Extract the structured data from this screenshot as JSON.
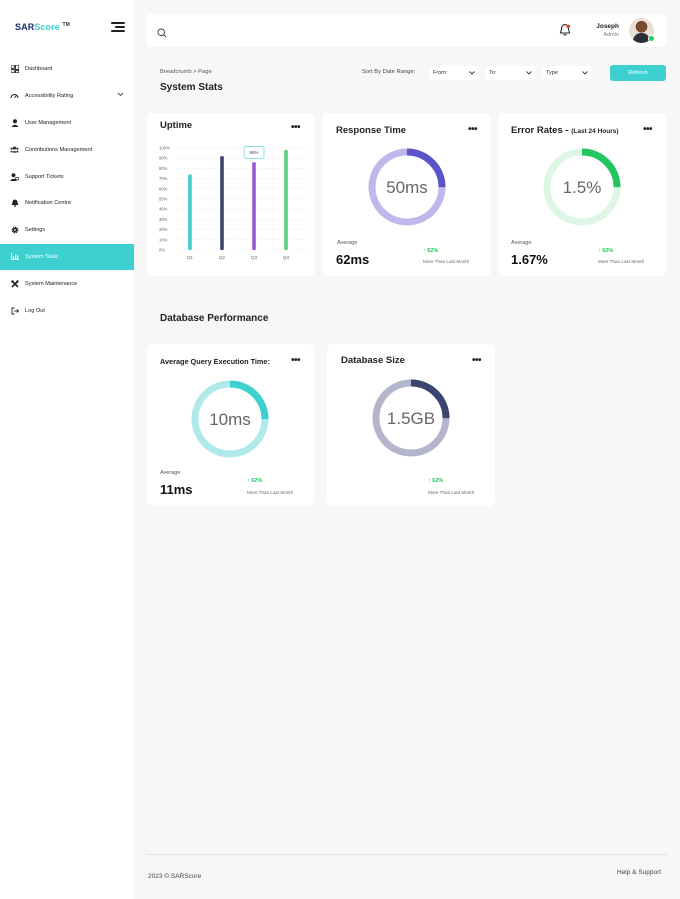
{
  "app": {
    "logo_main": "SAR",
    "logo_accent": "Score",
    "logo_tm": "TM"
  },
  "sidebar": {
    "items": [
      {
        "label": "Dashboard",
        "icon": "dashboard-icon"
      },
      {
        "label": "Accessibility Rating",
        "icon": "gauge-icon"
      },
      {
        "label": "User Management",
        "icon": "user-icon"
      },
      {
        "label": "Contributions Management",
        "icon": "users-icon"
      },
      {
        "label": "Support Tickets",
        "icon": "ticket-user-icon"
      },
      {
        "label": "Notification Centre",
        "icon": "bell-icon"
      },
      {
        "label": "Settings",
        "icon": "gear-icon"
      },
      {
        "label": "System Stats",
        "icon": "bar-chart-icon"
      },
      {
        "label": "System Maintenance",
        "icon": "tools-icon"
      },
      {
        "label": "Log Out",
        "icon": "logout-icon"
      }
    ],
    "active_index": 7
  },
  "header": {
    "search_placeholder": "",
    "user_name": "Joseph",
    "user_role": "Admin"
  },
  "toolbar": {
    "breadcrumb": "Breadcrumb > Page",
    "page_title": "System Stats",
    "sort_label": "Sort By Date Range:",
    "from_label": "From:",
    "to_label": "To:",
    "type_label": "Type",
    "refresh_label": "Refresh"
  },
  "uptime": {
    "title": "Uptime",
    "tooltip": "86%",
    "chart_data": {
      "type": "bar",
      "categories": [
        "Q1",
        "Q2",
        "Q3",
        "Q4"
      ],
      "values": [
        74,
        92,
        86,
        98
      ],
      "colors": [
        "#3ecfcf",
        "#3c4470",
        "#9b59d0",
        "#5cd17f"
      ],
      "yticks": [
        "100%",
        "90%",
        "80%",
        "70%",
        "60%",
        "50%",
        "40%",
        "30%",
        "20%",
        "10%",
        "0%"
      ],
      "ylim": [
        0,
        100
      ],
      "grid": true
    }
  },
  "response_time": {
    "title": "Response Time",
    "center_value": "50ms",
    "fill_fraction": 0.25,
    "color": "#5b54c9",
    "track_color": "#c0b8ea",
    "avg_label": "Average",
    "avg_value": "62ms",
    "trend_value": "↑ 62%",
    "trend_text": "More Than Last Month"
  },
  "error_rates": {
    "title": "Error Rates -",
    "title_suffix": "(Last 24 Hours)",
    "center_value": "1.5%",
    "fill_fraction": 0.25,
    "color": "#22c55e",
    "track_color": "#def6e5",
    "avg_label": "Average",
    "avg_value": "1.67%",
    "trend_value": "↑ 62%",
    "trend_text": "More Than Last Month"
  },
  "db_section": {
    "title": "Database Performance"
  },
  "query_time": {
    "title": "Average Query Execution Time:",
    "center_value": "10ms",
    "fill_fraction": 0.25,
    "color": "#3ecfcf",
    "track_color": "#afe9e9",
    "avg_label": "Average",
    "avg_value": "11ms",
    "trend_value": "↑ 62%",
    "trend_text": "More Than Last Month"
  },
  "db_size": {
    "title": "Database Size",
    "center_value": "1.5GB",
    "fill_fraction": 0.25,
    "color": "#3c4470",
    "track_color": "#b4b5cb",
    "trend_value": "↑ 62%",
    "trend_text": "More Than Last Month"
  },
  "footer": {
    "copyright": "2023 © SARScore",
    "help": "Help & Support"
  }
}
